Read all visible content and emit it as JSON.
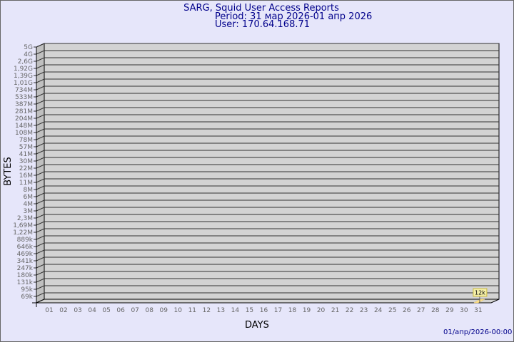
{
  "header": {
    "title": "SARG, Squid User Access Reports",
    "period": "Period: 31 мар 2026-01 апр 2026",
    "user": "User: 170.64.168.71"
  },
  "footer": {
    "timestamp": "01/апр/2026-00:00"
  },
  "colors": {
    "wall": "#d3d3d3",
    "bar": "#ffe08a",
    "text": "#00008b",
    "tick": "#666666"
  },
  "chart_data": {
    "type": "bar",
    "xlabel": "DAYS",
    "ylabel": "BYTES",
    "categories": [
      "01",
      "02",
      "03",
      "04",
      "05",
      "06",
      "07",
      "08",
      "09",
      "10",
      "11",
      "12",
      "13",
      "14",
      "15",
      "16",
      "17",
      "18",
      "19",
      "20",
      "21",
      "22",
      "23",
      "24",
      "25",
      "26",
      "27",
      "28",
      "29",
      "30",
      "31"
    ],
    "y_tick_labels": [
      "5G",
      "4G",
      "2,6G",
      "1,92G",
      "1,39G",
      "1,01G",
      "734M",
      "533M",
      "387M",
      "281M",
      "204M",
      "148M",
      "108M",
      "78M",
      "57M",
      "41M",
      "30M",
      "22M",
      "16M",
      "11M",
      "8M",
      "6M",
      "4M",
      "3M",
      "2,3M",
      "1,69M",
      "1,22M",
      "889k",
      "646k",
      "469k",
      "341k",
      "247k",
      "180k",
      "131k",
      "95k",
      "69k"
    ],
    "y_scale": "log",
    "grid": true,
    "values": [
      null,
      null,
      null,
      null,
      null,
      null,
      null,
      null,
      null,
      null,
      null,
      null,
      null,
      null,
      null,
      null,
      null,
      null,
      null,
      null,
      null,
      null,
      null,
      null,
      null,
      null,
      null,
      null,
      null,
      null,
      12000
    ],
    "data_labels": {
      "31": "12k"
    }
  }
}
